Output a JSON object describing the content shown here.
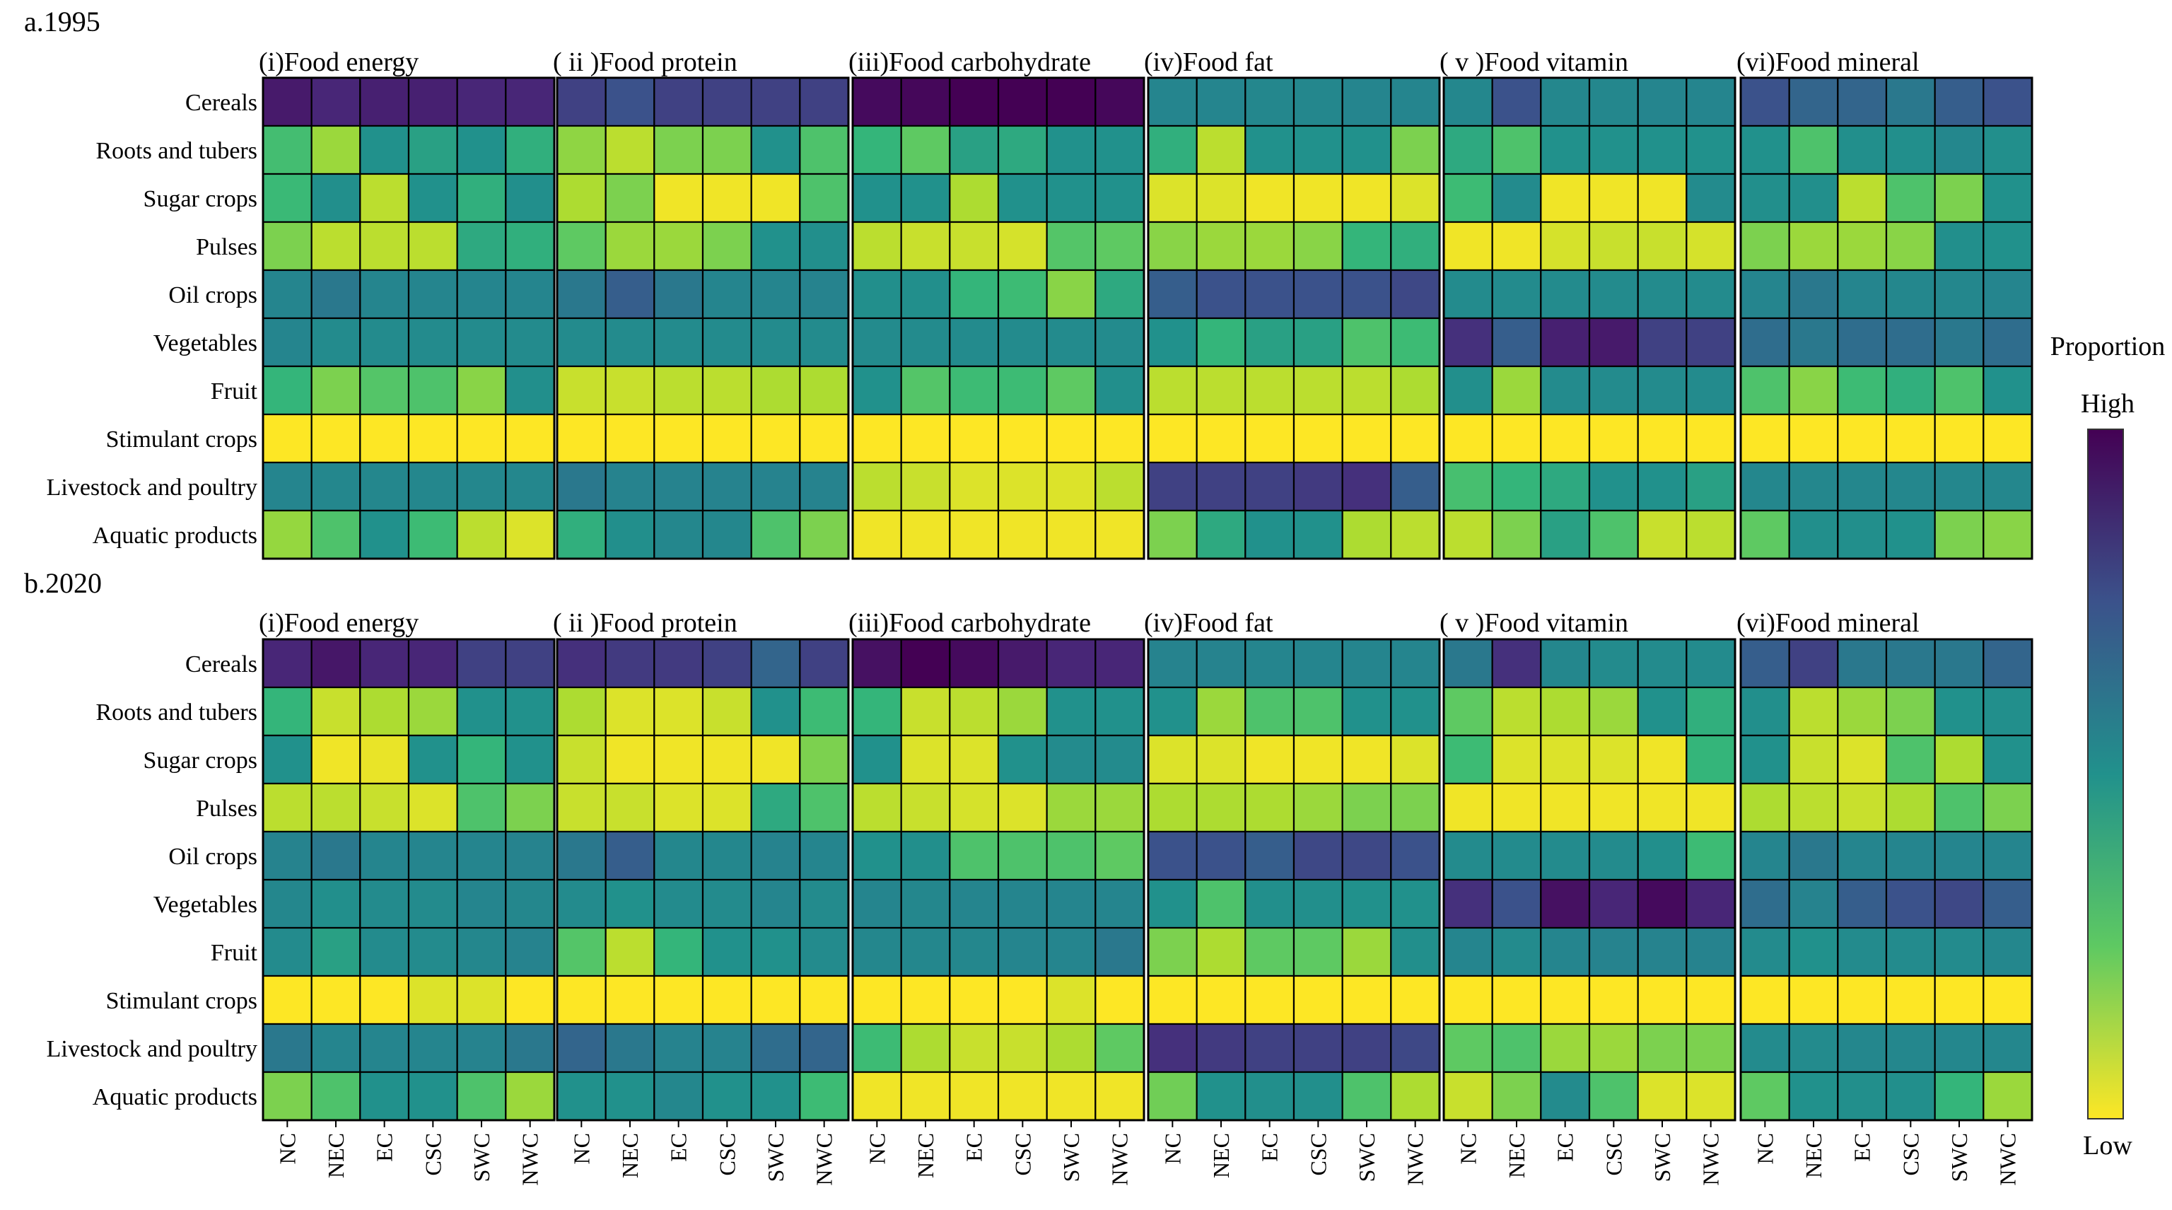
{
  "chart_data": {
    "type": "heatmap",
    "scale": "proportion level (0 = Low, 1 = High); values estimated from cell colour",
    "rows": [
      "Cereals",
      "Roots and tubers",
      "Sugar crops",
      "Pulses",
      "Oil crops",
      "Vegetables",
      "Fruit",
      "Stimulant crops",
      "Livestock and poultry",
      "Aquatic products"
    ],
    "columns": [
      "NC",
      "NEC",
      "EC",
      "CSC",
      "SWC",
      "NWC"
    ],
    "panels": [
      "(i)Food energy",
      "( ii )Food protein",
      "(iii)Food carbohydrate",
      "(iv)Food fat",
      "( v )Food vitamin",
      "(vi)Food mineral"
    ],
    "legend": {
      "title": "Proportion",
      "high_label": "High",
      "low_label": "Low"
    },
    "blocks": [
      {
        "title": "a.1995",
        "values": [
          [
            [
              0.92,
              0.88,
              0.9,
              0.9,
              0.88,
              0.88
            ],
            [
              0.33,
              0.15,
              0.5,
              0.45,
              0.5,
              0.4
            ],
            [
              0.36,
              0.52,
              0.1,
              0.5,
              0.4,
              0.52
            ],
            [
              0.2,
              0.1,
              0.1,
              0.1,
              0.42,
              0.4
            ],
            [
              0.6,
              0.65,
              0.6,
              0.6,
              0.6,
              0.6
            ],
            [
              0.6,
              0.55,
              0.55,
              0.55,
              0.55,
              0.55
            ],
            [
              0.38,
              0.2,
              0.28,
              0.3,
              0.18,
              0.52
            ],
            [
              0.0,
              0.0,
              0.0,
              0.0,
              0.0,
              0.0
            ],
            [
              0.6,
              0.58,
              0.58,
              0.58,
              0.58,
              0.58
            ],
            [
              0.16,
              0.3,
              0.5,
              0.35,
              0.1,
              0.05
            ]
          ],
          [
            [
              0.8,
              0.75,
              0.8,
              0.8,
              0.8,
              0.8
            ],
            [
              0.17,
              0.1,
              0.2,
              0.2,
              0.5,
              0.3
            ],
            [
              0.12,
              0.2,
              0.02,
              0.02,
              0.02,
              0.3
            ],
            [
              0.25,
              0.15,
              0.15,
              0.2,
              0.5,
              0.52
            ],
            [
              0.65,
              0.72,
              0.65,
              0.6,
              0.6,
              0.62
            ],
            [
              0.55,
              0.55,
              0.55,
              0.55,
              0.55,
              0.55
            ],
            [
              0.08,
              0.08,
              0.1,
              0.1,
              0.12,
              0.12
            ],
            [
              0.0,
              0.0,
              0.0,
              0.0,
              0.0,
              0.0
            ],
            [
              0.65,
              0.62,
              0.62,
              0.62,
              0.62,
              0.62
            ],
            [
              0.4,
              0.52,
              0.58,
              0.58,
              0.3,
              0.2
            ]
          ],
          [
            [
              0.97,
              0.98,
              1.0,
              1.0,
              1.0,
              0.98
            ],
            [
              0.38,
              0.25,
              0.45,
              0.42,
              0.5,
              0.5
            ],
            [
              0.5,
              0.5,
              0.12,
              0.5,
              0.5,
              0.5
            ],
            [
              0.1,
              0.08,
              0.08,
              0.06,
              0.28,
              0.25
            ],
            [
              0.52,
              0.52,
              0.38,
              0.35,
              0.18,
              0.42
            ],
            [
              0.55,
              0.55,
              0.55,
              0.55,
              0.55,
              0.55
            ],
            [
              0.5,
              0.28,
              0.35,
              0.35,
              0.25,
              0.52
            ],
            [
              0.0,
              0.0,
              0.0,
              0.0,
              0.0,
              0.0
            ],
            [
              0.1,
              0.08,
              0.05,
              0.05,
              0.05,
              0.1
            ],
            [
              0.02,
              0.02,
              0.02,
              0.02,
              0.02,
              0.02
            ]
          ],
          [
            [
              0.6,
              0.6,
              0.58,
              0.58,
              0.6,
              0.6
            ],
            [
              0.4,
              0.1,
              0.5,
              0.5,
              0.5,
              0.2
            ],
            [
              0.05,
              0.05,
              0.02,
              0.02,
              0.02,
              0.05
            ],
            [
              0.18,
              0.15,
              0.15,
              0.18,
              0.38,
              0.4
            ],
            [
              0.72,
              0.75,
              0.75,
              0.75,
              0.75,
              0.78
            ],
            [
              0.5,
              0.38,
              0.45,
              0.45,
              0.3,
              0.35
            ],
            [
              0.1,
              0.1,
              0.1,
              0.1,
              0.1,
              0.12
            ],
            [
              0.0,
              0.0,
              0.0,
              0.0,
              0.0,
              0.0
            ],
            [
              0.8,
              0.8,
              0.8,
              0.82,
              0.85,
              0.72
            ],
            [
              0.2,
              0.42,
              0.5,
              0.5,
              0.12,
              0.1
            ]
          ],
          [
            [
              0.58,
              0.75,
              0.58,
              0.58,
              0.6,
              0.6
            ],
            [
              0.42,
              0.3,
              0.5,
              0.5,
              0.5,
              0.5
            ],
            [
              0.35,
              0.55,
              0.02,
              0.02,
              0.02,
              0.55
            ],
            [
              0.02,
              0.02,
              0.06,
              0.08,
              0.08,
              0.06
            ],
            [
              0.55,
              0.55,
              0.55,
              0.55,
              0.55,
              0.55
            ],
            [
              0.85,
              0.72,
              0.9,
              0.92,
              0.8,
              0.8
            ],
            [
              0.52,
              0.15,
              0.55,
              0.55,
              0.55,
              0.55
            ],
            [
              0.0,
              0.0,
              0.0,
              0.0,
              0.0,
              0.0
            ],
            [
              0.32,
              0.38,
              0.42,
              0.5,
              0.5,
              0.45
            ],
            [
              0.1,
              0.2,
              0.45,
              0.3,
              0.08,
              0.1
            ]
          ],
          [
            [
              0.75,
              0.7,
              0.7,
              0.65,
              0.72,
              0.75
            ],
            [
              0.5,
              0.3,
              0.52,
              0.52,
              0.58,
              0.52
            ],
            [
              0.52,
              0.52,
              0.1,
              0.3,
              0.2,
              0.5
            ],
            [
              0.2,
              0.15,
              0.15,
              0.18,
              0.52,
              0.5
            ],
            [
              0.6,
              0.65,
              0.6,
              0.58,
              0.58,
              0.6
            ],
            [
              0.68,
              0.65,
              0.68,
              0.68,
              0.65,
              0.68
            ],
            [
              0.3,
              0.18,
              0.35,
              0.4,
              0.3,
              0.5
            ],
            [
              0.0,
              0.0,
              0.0,
              0.0,
              0.0,
              0.0
            ],
            [
              0.58,
              0.58,
              0.58,
              0.58,
              0.58,
              0.58
            ],
            [
              0.25,
              0.52,
              0.52,
              0.5,
              0.2,
              0.18
            ]
          ]
        ]
      },
      {
        "title": "b.2020",
        "values": [
          [
            [
              0.88,
              0.93,
              0.88,
              0.88,
              0.8,
              0.8
            ],
            [
              0.38,
              0.08,
              0.12,
              0.15,
              0.5,
              0.5
            ],
            [
              0.5,
              0.02,
              0.03,
              0.5,
              0.38,
              0.5
            ],
            [
              0.1,
              0.1,
              0.08,
              0.05,
              0.3,
              0.2
            ],
            [
              0.62,
              0.65,
              0.6,
              0.6,
              0.6,
              0.62
            ],
            [
              0.58,
              0.52,
              0.55,
              0.55,
              0.6,
              0.58
            ],
            [
              0.55,
              0.45,
              0.55,
              0.55,
              0.58,
              0.62
            ],
            [
              0.0,
              0.0,
              0.0,
              0.05,
              0.05,
              0.0
            ],
            [
              0.65,
              0.6,
              0.6,
              0.6,
              0.62,
              0.65
            ],
            [
              0.2,
              0.3,
              0.5,
              0.5,
              0.3,
              0.15
            ]
          ],
          [
            [
              0.85,
              0.82,
              0.82,
              0.8,
              0.7,
              0.8
            ],
            [
              0.12,
              0.05,
              0.05,
              0.08,
              0.5,
              0.35
            ],
            [
              0.08,
              0.02,
              0.02,
              0.02,
              0.02,
              0.2
            ],
            [
              0.08,
              0.08,
              0.05,
              0.05,
              0.42,
              0.3
            ],
            [
              0.65,
              0.72,
              0.58,
              0.58,
              0.62,
              0.6
            ],
            [
              0.55,
              0.5,
              0.55,
              0.55,
              0.6,
              0.55
            ],
            [
              0.28,
              0.1,
              0.38,
              0.5,
              0.5,
              0.55
            ],
            [
              0.0,
              0.0,
              0.0,
              0.0,
              0.0,
              0.0
            ],
            [
              0.7,
              0.65,
              0.62,
              0.62,
              0.68,
              0.7
            ],
            [
              0.5,
              0.5,
              0.58,
              0.5,
              0.5,
              0.35
            ]
          ],
          [
            [
              0.95,
              1.0,
              0.97,
              0.92,
              0.88,
              0.88
            ],
            [
              0.38,
              0.08,
              0.1,
              0.15,
              0.5,
              0.5
            ],
            [
              0.5,
              0.05,
              0.05,
              0.5,
              0.55,
              0.55
            ],
            [
              0.1,
              0.08,
              0.06,
              0.05,
              0.15,
              0.15
            ],
            [
              0.5,
              0.52,
              0.3,
              0.3,
              0.3,
              0.25
            ],
            [
              0.6,
              0.58,
              0.6,
              0.6,
              0.6,
              0.6
            ],
            [
              0.58,
              0.58,
              0.58,
              0.6,
              0.6,
              0.65
            ],
            [
              0.0,
              0.0,
              0.0,
              0.0,
              0.05,
              0.0
            ],
            [
              0.35,
              0.12,
              0.08,
              0.08,
              0.12,
              0.25
            ],
            [
              0.02,
              0.02,
              0.02,
              0.02,
              0.02,
              0.02
            ]
          ],
          [
            [
              0.62,
              0.62,
              0.6,
              0.6,
              0.6,
              0.6
            ],
            [
              0.5,
              0.15,
              0.3,
              0.3,
              0.5,
              0.5
            ],
            [
              0.05,
              0.05,
              0.02,
              0.02,
              0.02,
              0.05
            ],
            [
              0.12,
              0.12,
              0.12,
              0.15,
              0.2,
              0.2
            ],
            [
              0.75,
              0.75,
              0.72,
              0.78,
              0.78,
              0.75
            ],
            [
              0.5,
              0.3,
              0.52,
              0.52,
              0.5,
              0.5
            ],
            [
              0.2,
              0.12,
              0.25,
              0.25,
              0.15,
              0.52
            ],
            [
              0.0,
              0.0,
              0.0,
              0.0,
              0.0,
              0.0
            ],
            [
              0.85,
              0.82,
              0.8,
              0.8,
              0.8,
              0.78
            ],
            [
              0.22,
              0.5,
              0.52,
              0.52,
              0.3,
              0.12
            ]
          ],
          [
            [
              0.65,
              0.85,
              0.58,
              0.55,
              0.55,
              0.55
            ],
            [
              0.25,
              0.1,
              0.12,
              0.15,
              0.5,
              0.4
            ],
            [
              0.35,
              0.05,
              0.05,
              0.05,
              0.02,
              0.38
            ],
            [
              0.02,
              0.02,
              0.02,
              0.02,
              0.02,
              0.02
            ],
            [
              0.55,
              0.55,
              0.55,
              0.55,
              0.52,
              0.35
            ],
            [
              0.85,
              0.75,
              0.95,
              0.88,
              0.97,
              0.88
            ],
            [
              0.6,
              0.55,
              0.6,
              0.62,
              0.62,
              0.62
            ],
            [
              0.0,
              0.0,
              0.0,
              0.0,
              0.0,
              0.0
            ],
            [
              0.25,
              0.3,
              0.15,
              0.15,
              0.2,
              0.2
            ],
            [
              0.08,
              0.2,
              0.55,
              0.3,
              0.05,
              0.05
            ]
          ],
          [
            [
              0.72,
              0.8,
              0.65,
              0.65,
              0.65,
              0.7
            ],
            [
              0.52,
              0.1,
              0.15,
              0.2,
              0.5,
              0.52
            ],
            [
              0.5,
              0.08,
              0.05,
              0.3,
              0.12,
              0.5
            ],
            [
              0.12,
              0.1,
              0.08,
              0.12,
              0.3,
              0.2
            ],
            [
              0.6,
              0.65,
              0.6,
              0.6,
              0.6,
              0.6
            ],
            [
              0.68,
              0.62,
              0.72,
              0.75,
              0.78,
              0.72
            ],
            [
              0.55,
              0.5,
              0.55,
              0.55,
              0.55,
              0.58
            ],
            [
              0.0,
              0.0,
              0.0,
              0.0,
              0.0,
              0.0
            ],
            [
              0.55,
              0.55,
              0.58,
              0.58,
              0.58,
              0.58
            ],
            [
              0.25,
              0.5,
              0.52,
              0.52,
              0.38,
              0.15
            ]
          ]
        ]
      }
    ]
  }
}
